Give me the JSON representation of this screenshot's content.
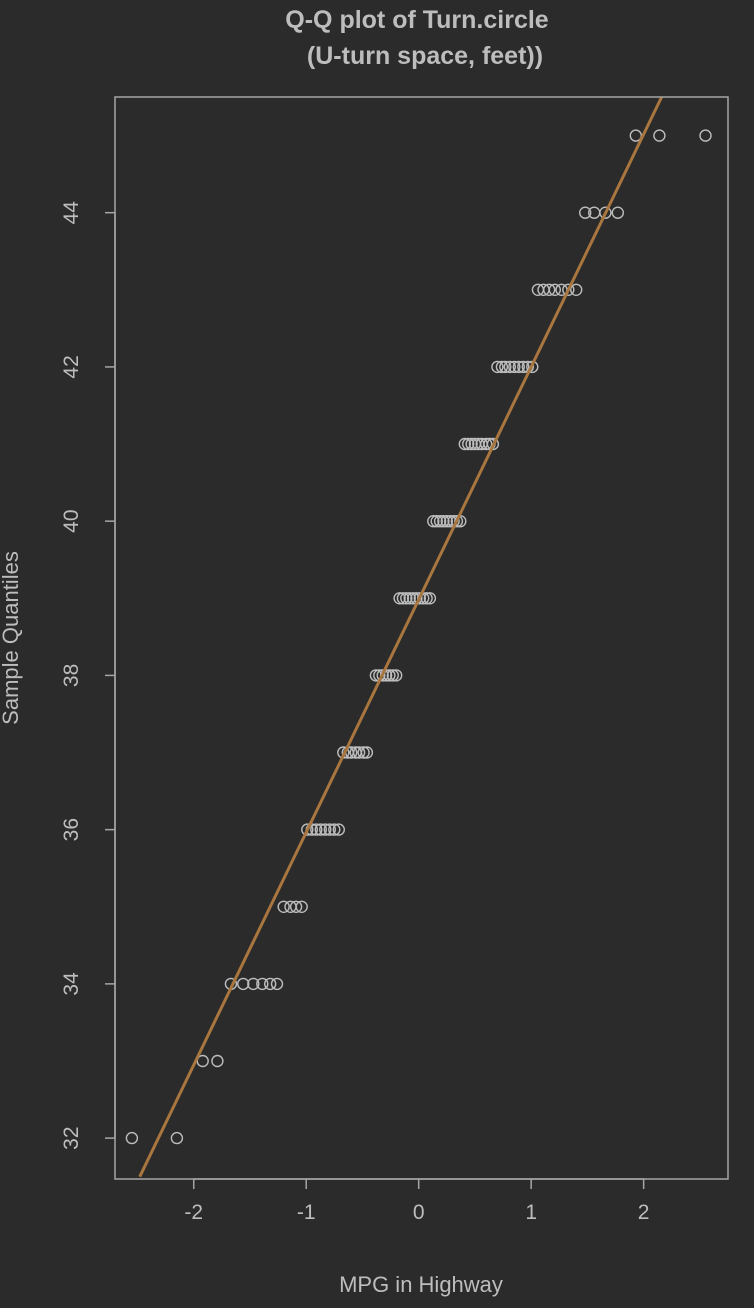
{
  "chart_data": {
    "type": "scatter",
    "title": "Q-Q plot of Turn.circle",
    "subtitle": "(U-turn space, feet))",
    "xlabel": "MPG in Highway",
    "ylabel": "Sample Quantiles",
    "xlim": [
      -2.7,
      2.75
    ],
    "ylim": [
      31.47,
      45.5
    ],
    "x_ticks": [
      -2,
      -1,
      0,
      1,
      2
    ],
    "y_ticks": [
      32,
      34,
      36,
      38,
      40,
      42,
      44
    ],
    "grid": false,
    "colors": {
      "background": "#2b2b2b",
      "points": "#bdbdbd",
      "line": "#a8763e",
      "frame": "#a6a6a6"
    },
    "line": {
      "x": [
        -2.48,
        2.16
      ],
      "y": [
        31.5,
        45.5
      ]
    },
    "points": [
      {
        "y": 32,
        "x": [
          -2.55,
          -2.15
        ]
      },
      {
        "y": 33,
        "x": [
          -1.92,
          -1.79
        ]
      },
      {
        "y": 34,
        "x": [
          -1.67,
          -1.56,
          -1.47,
          -1.39,
          -1.32,
          -1.26
        ]
      },
      {
        "y": 35,
        "x": [
          -1.2,
          -1.14,
          -1.09,
          -1.04
        ]
      },
      {
        "y": 36,
        "x": [
          -0.99,
          -0.95,
          -0.91,
          -0.87,
          -0.83,
          -0.79,
          -0.75,
          -0.71
        ]
      },
      {
        "y": 37,
        "x": [
          -0.67,
          -0.63,
          -0.6,
          -0.56,
          -0.53,
          -0.49,
          -0.46
        ]
      },
      {
        "y": 38,
        "x": [
          -0.38,
          -0.35,
          -0.32,
          -0.29,
          -0.26,
          -0.23,
          -0.2
        ]
      },
      {
        "y": 39,
        "x": [
          -0.17,
          -0.14,
          -0.11,
          -0.08,
          -0.05,
          -0.02,
          0.01,
          0.04,
          0.07,
          0.1
        ]
      },
      {
        "y": 40,
        "x": [
          0.13,
          0.16,
          0.19,
          0.22,
          0.25,
          0.28,
          0.31,
          0.34,
          0.37
        ]
      },
      {
        "y": 41,
        "x": [
          0.41,
          0.44,
          0.47,
          0.5,
          0.53,
          0.56,
          0.6,
          0.63,
          0.66
        ]
      },
      {
        "y": 42,
        "x": [
          0.7,
          0.74,
          0.77,
          0.81,
          0.85,
          0.89,
          0.93,
          0.97,
          1.01
        ]
      },
      {
        "y": 43,
        "x": [
          1.06,
          1.11,
          1.16,
          1.21,
          1.27,
          1.33,
          1.4
        ]
      },
      {
        "y": 44,
        "x": [
          1.48,
          1.56,
          1.66,
          1.77
        ]
      },
      {
        "y": 45,
        "x": [
          1.93,
          2.14,
          2.55
        ]
      }
    ]
  }
}
